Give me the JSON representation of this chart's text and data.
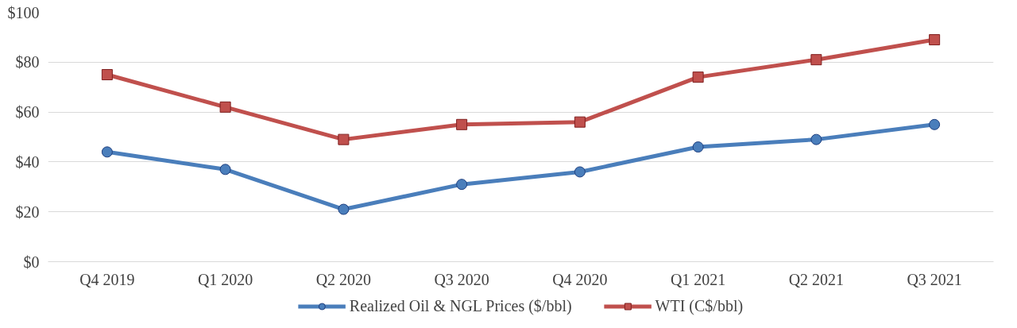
{
  "chart_data": {
    "type": "line",
    "categories": [
      "Q4 2019",
      "Q1 2020",
      "Q2 2020",
      "Q3 2020",
      "Q4 2020",
      "Q1 2021",
      "Q2 2021",
      "Q3 2021"
    ],
    "series": [
      {
        "name": "Realized Oil & NGL Prices ($/bbl)",
        "color": "#4a7ebb",
        "marker": "circle",
        "values": [
          44,
          37,
          21,
          31,
          36,
          46,
          49,
          55
        ]
      },
      {
        "name": "WTI (C$/bbl)",
        "color": "#c0504d",
        "marker": "square",
        "values": [
          75,
          62,
          49,
          55,
          56,
          74,
          81,
          89
        ]
      }
    ],
    "ylim": [
      0,
      100
    ],
    "yticks": [
      {
        "value": 0,
        "label": "$0"
      },
      {
        "value": 20,
        "label": "$20"
      },
      {
        "value": 40,
        "label": "$40"
      },
      {
        "value": 60,
        "label": "$60"
      },
      {
        "value": 80,
        "label": "$80"
      },
      {
        "value": 100,
        "label": "$100"
      }
    ],
    "grid": "y",
    "legend": "bottom",
    "line_style": "solid"
  }
}
